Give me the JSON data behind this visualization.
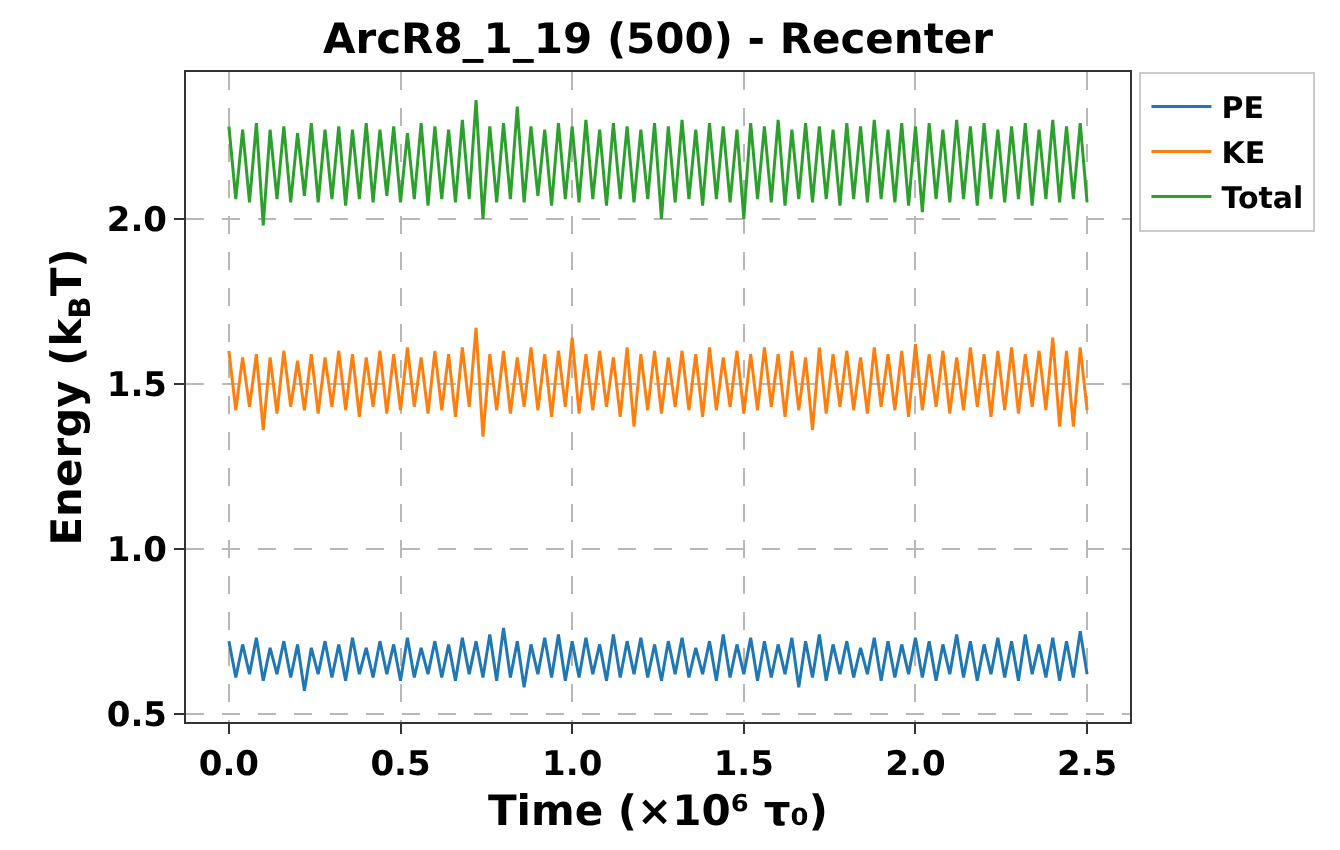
{
  "chart_data": {
    "type": "line",
    "title": "ArcR8_1_19 (500) - Recenter",
    "xlabel": "Time (×10⁶ τ₀)",
    "ylabel": "Energy (k$_{B}$T)",
    "x": [
      0,
      0.02,
      0.04,
      0.06,
      0.08,
      0.1,
      0.12,
      0.14,
      0.16,
      0.18,
      0.2,
      0.22,
      0.24,
      0.26,
      0.28,
      0.3,
      0.32,
      0.34,
      0.36,
      0.38,
      0.4,
      0.42,
      0.44,
      0.46,
      0.48,
      0.5,
      0.52,
      0.54,
      0.56,
      0.58,
      0.6,
      0.62,
      0.64,
      0.66,
      0.68,
      0.7,
      0.72,
      0.74,
      0.76,
      0.78,
      0.8,
      0.82,
      0.84,
      0.86,
      0.88,
      0.9,
      0.92,
      0.94,
      0.96,
      0.98,
      1.0,
      1.02,
      1.04,
      1.06,
      1.08,
      1.1,
      1.12,
      1.14,
      1.16,
      1.18,
      1.2,
      1.22,
      1.24,
      1.26,
      1.28,
      1.3,
      1.32,
      1.34,
      1.36,
      1.38,
      1.4,
      1.42,
      1.44,
      1.46,
      1.48,
      1.5,
      1.52,
      1.54,
      1.56,
      1.58,
      1.6,
      1.62,
      1.64,
      1.66,
      1.68,
      1.7,
      1.72,
      1.74,
      1.76,
      1.78,
      1.8,
      1.82,
      1.84,
      1.86,
      1.88,
      1.9,
      1.92,
      1.94,
      1.96,
      1.98,
      2.0,
      2.02,
      2.04,
      2.06,
      2.08,
      2.1,
      2.12,
      2.14,
      2.16,
      2.18,
      2.2,
      2.22,
      2.24,
      2.26,
      2.28,
      2.3,
      2.32,
      2.34,
      2.36,
      2.38,
      2.4,
      2.42,
      2.44,
      2.46,
      2.48,
      2.5
    ],
    "series": [
      {
        "name": "PE",
        "color": "#1f77b4",
        "values": [
          0.72,
          0.61,
          0.71,
          0.62,
          0.73,
          0.6,
          0.7,
          0.62,
          0.72,
          0.61,
          0.71,
          0.57,
          0.7,
          0.62,
          0.72,
          0.61,
          0.71,
          0.6,
          0.73,
          0.62,
          0.7,
          0.61,
          0.72,
          0.62,
          0.71,
          0.6,
          0.73,
          0.61,
          0.7,
          0.62,
          0.72,
          0.61,
          0.71,
          0.6,
          0.73,
          0.62,
          0.72,
          0.61,
          0.74,
          0.6,
          0.76,
          0.61,
          0.72,
          0.58,
          0.71,
          0.62,
          0.73,
          0.61,
          0.74,
          0.6,
          0.72,
          0.61,
          0.73,
          0.62,
          0.71,
          0.6,
          0.74,
          0.61,
          0.72,
          0.62,
          0.73,
          0.61,
          0.71,
          0.6,
          0.72,
          0.62,
          0.73,
          0.61,
          0.7,
          0.62,
          0.72,
          0.6,
          0.74,
          0.61,
          0.71,
          0.62,
          0.73,
          0.6,
          0.72,
          0.61,
          0.71,
          0.62,
          0.73,
          0.58,
          0.72,
          0.61,
          0.74,
          0.6,
          0.71,
          0.62,
          0.72,
          0.61,
          0.7,
          0.62,
          0.73,
          0.6,
          0.72,
          0.61,
          0.71,
          0.62,
          0.73,
          0.61,
          0.72,
          0.6,
          0.71,
          0.62,
          0.74,
          0.61,
          0.72,
          0.6,
          0.71,
          0.62,
          0.73,
          0.61,
          0.72,
          0.6,
          0.74,
          0.62,
          0.71,
          0.61,
          0.73,
          0.6,
          0.72,
          0.61,
          0.75,
          0.62
        ]
      },
      {
        "name": "KE",
        "color": "#ff7f0e",
        "values": [
          1.6,
          1.42,
          1.58,
          1.43,
          1.59,
          1.36,
          1.58,
          1.41,
          1.6,
          1.43,
          1.57,
          1.42,
          1.59,
          1.41,
          1.58,
          1.43,
          1.6,
          1.42,
          1.59,
          1.4,
          1.58,
          1.43,
          1.6,
          1.41,
          1.59,
          1.42,
          1.61,
          1.43,
          1.58,
          1.41,
          1.6,
          1.42,
          1.59,
          1.4,
          1.61,
          1.43,
          1.67,
          1.34,
          1.59,
          1.42,
          1.6,
          1.41,
          1.58,
          1.43,
          1.61,
          1.42,
          1.59,
          1.4,
          1.6,
          1.43,
          1.64,
          1.41,
          1.59,
          1.42,
          1.6,
          1.43,
          1.58,
          1.4,
          1.61,
          1.37,
          1.59,
          1.42,
          1.6,
          1.41,
          1.58,
          1.43,
          1.6,
          1.42,
          1.59,
          1.4,
          1.61,
          1.42,
          1.58,
          1.43,
          1.6,
          1.41,
          1.59,
          1.42,
          1.61,
          1.43,
          1.59,
          1.4,
          1.6,
          1.42,
          1.58,
          1.36,
          1.61,
          1.41,
          1.59,
          1.43,
          1.6,
          1.42,
          1.58,
          1.41,
          1.61,
          1.43,
          1.59,
          1.42,
          1.6,
          1.4,
          1.62,
          1.42,
          1.59,
          1.43,
          1.6,
          1.41,
          1.58,
          1.42,
          1.61,
          1.43,
          1.59,
          1.4,
          1.6,
          1.42,
          1.61,
          1.41,
          1.59,
          1.43,
          1.6,
          1.42,
          1.64,
          1.37,
          1.6,
          1.37,
          1.61,
          1.42
        ]
      },
      {
        "name": "Total",
        "color": "#2ca02c",
        "values": [
          2.28,
          2.06,
          2.27,
          2.05,
          2.29,
          1.98,
          2.27,
          2.06,
          2.28,
          2.05,
          2.26,
          2.07,
          2.29,
          2.05,
          2.27,
          2.06,
          2.28,
          2.04,
          2.27,
          2.06,
          2.29,
          2.05,
          2.27,
          2.07,
          2.28,
          2.05,
          2.26,
          2.06,
          2.29,
          2.04,
          2.28,
          2.06,
          2.27,
          2.05,
          2.3,
          2.06,
          2.36,
          2.0,
          2.28,
          2.05,
          2.29,
          2.06,
          2.34,
          2.05,
          2.28,
          2.07,
          2.27,
          2.04,
          2.29,
          2.06,
          2.28,
          2.05,
          2.3,
          2.06,
          2.27,
          2.04,
          2.29,
          2.06,
          2.28,
          2.05,
          2.27,
          2.06,
          2.29,
          2.0,
          2.28,
          2.05,
          2.3,
          2.06,
          2.27,
          2.04,
          2.29,
          2.06,
          2.28,
          2.05,
          2.27,
          2.0,
          2.29,
          2.06,
          2.28,
          2.05,
          2.3,
          2.04,
          2.27,
          2.06,
          2.29,
          2.05,
          2.28,
          2.06,
          2.27,
          2.04,
          2.29,
          2.06,
          2.28,
          2.05,
          2.3,
          2.06,
          2.27,
          2.05,
          2.29,
          2.04,
          2.28,
          2.02,
          2.29,
          2.06,
          2.27,
          2.05,
          2.3,
          2.06,
          2.28,
          2.04,
          2.29,
          2.06,
          2.27,
          2.05,
          2.28,
          2.06,
          2.29,
          2.04,
          2.27,
          2.06,
          2.3,
          2.05,
          2.28,
          2.06,
          2.29,
          2.05
        ]
      }
    ],
    "xlim": [
      -0.125,
      2.625
    ],
    "ylim": [
      0.475,
      2.445
    ],
    "xticks": [
      {
        "value": 0,
        "label": "0.0"
      },
      0.5,
      {
        "value": 1,
        "label": "1.0"
      },
      1.5,
      {
        "value": 2,
        "label": "2.0"
      },
      2.5
    ],
    "yticks": [
      0.5,
      {
        "value": 1,
        "label": "1.0"
      },
      1.5,
      {
        "value": 2,
        "label": "2.0"
      }
    ],
    "grid": true,
    "legend": "top right"
  }
}
